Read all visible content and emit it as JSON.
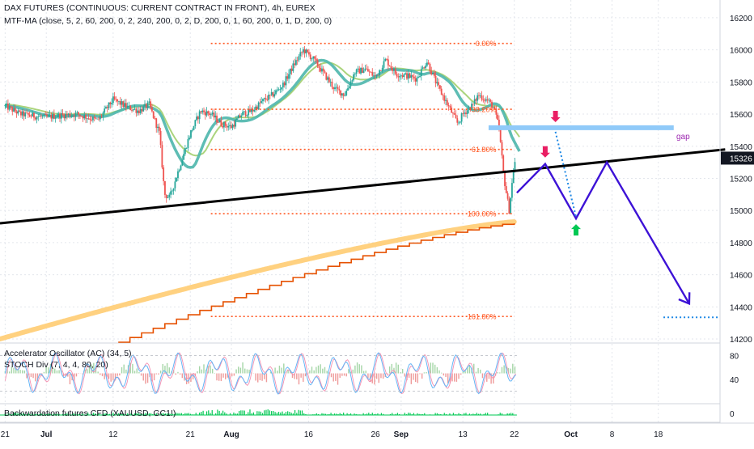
{
  "chart_data": {
    "type": "candlestick",
    "header": {
      "title": "DAX FUTURES (CONTINUOUS: CURRENT CONTRACT IN FRONT), 4h, EUREX",
      "indicator": "MTF-MA (close, 5, 2, 60, 200, 0, 2, 240, 200, 0, 2, D, 200, 0, 1, 60, 200, 0, 1, D, 200, 0)"
    },
    "price_axis": {
      "ticks": [
        16200,
        16000,
        15800,
        15600,
        15400,
        15200,
        15000,
        14800,
        14600,
        14400,
        14200
      ],
      "ylim": [
        14180,
        16270
      ],
      "current_price": "15326"
    },
    "time_axis": {
      "labels": [
        {
          "t": 0,
          "text": "21"
        },
        {
          "t": 8,
          "text": "Jul"
        },
        {
          "t": 21,
          "text": "12"
        },
        {
          "t": 36,
          "text": "21"
        },
        {
          "t": 44,
          "text": "Aug"
        },
        {
          "t": 59,
          "text": "16"
        },
        {
          "t": 72,
          "text": "26"
        },
        {
          "t": 77,
          "text": "Sep"
        },
        {
          "t": 89,
          "text": "13"
        },
        {
          "t": 99,
          "text": "22"
        },
        {
          "t": 110,
          "text": "Oct"
        },
        {
          "t": 118,
          "text": "8"
        },
        {
          "t": 127,
          "text": "18"
        }
      ]
    },
    "price_path": [
      [
        0,
        15650
      ],
      [
        3,
        15600
      ],
      [
        5,
        15590
      ],
      [
        8,
        15580
      ],
      [
        10,
        15590
      ],
      [
        14,
        15600
      ],
      [
        18,
        15560
      ],
      [
        21,
        15690
      ],
      [
        24,
        15640
      ],
      [
        26,
        15620
      ],
      [
        28,
        15660
      ],
      [
        30,
        15480
      ],
      [
        31,
        15100
      ],
      [
        32,
        15080
      ],
      [
        34,
        15280
      ],
      [
        36,
        15480
      ],
      [
        38,
        15620
      ],
      [
        40,
        15600
      ],
      [
        42,
        15540
      ],
      [
        44,
        15520
      ],
      [
        46,
        15600
      ],
      [
        48,
        15620
      ],
      [
        50,
        15680
      ],
      [
        52,
        15720
      ],
      [
        54,
        15780
      ],
      [
        56,
        15900
      ],
      [
        58,
        16000
      ],
      [
        60,
        15940
      ],
      [
        62,
        15850
      ],
      [
        64,
        15760
      ],
      [
        66,
        15720
      ],
      [
        68,
        15860
      ],
      [
        70,
        15880
      ],
      [
        72,
        15830
      ],
      [
        74,
        15940
      ],
      [
        76,
        15850
      ],
      [
        78,
        15840
      ],
      [
        80,
        15820
      ],
      [
        82,
        15930
      ],
      [
        84,
        15780
      ],
      [
        86,
        15660
      ],
      [
        88,
        15540
      ],
      [
        89,
        15600
      ],
      [
        91,
        15660
      ],
      [
        92,
        15720
      ],
      [
        94,
        15680
      ],
      [
        95,
        15640
      ],
      [
        96,
        15520
      ],
      [
        97,
        15200
      ],
      [
        98,
        15000
      ],
      [
        99,
        15300
      ]
    ],
    "fibonacci": [
      {
        "label": "0.00%",
        "price": 16040
      },
      {
        "label": "38.20%",
        "price": 15630
      },
      {
        "label": "61.80%",
        "price": 15380
      },
      {
        "label": "100.00%",
        "price": 14980
      },
      {
        "label": "161.80%",
        "price": 14340
      }
    ],
    "annotations": {
      "gap_label": "gap",
      "gap_zone": {
        "from": 94,
        "to": 130,
        "price": 15515
      },
      "trendline": [
        {
          "t": -1,
          "price": 14920
        },
        {
          "t": 140,
          "price": 15380
        }
      ],
      "forecast_path": [
        {
          "t": 99.5,
          "price": 15110
        },
        {
          "t": 105,
          "price": 15290
        },
        {
          "t": 111,
          "price": 14950
        },
        {
          "t": 117,
          "price": 15300
        },
        {
          "t": 133,
          "price": 14420
        }
      ],
      "dotted_path": [
        {
          "t": 107,
          "price": 15490
        },
        {
          "t": 111,
          "price": 14960
        }
      ],
      "target_price": 14335,
      "arrows": [
        {
          "t": 107,
          "price": 15550,
          "dir": "down",
          "color": "#e91e63"
        },
        {
          "t": 105,
          "price": 15330,
          "dir": "down",
          "color": "#e91e63"
        },
        {
          "t": 111,
          "price": 14915,
          "dir": "up",
          "color": "#00c853"
        }
      ],
      "support_curves": {
        "yellow_start": {
          "t": -1,
          "price": 14200
        },
        "yellow_end": {
          "t": 99,
          "price": 14930
        },
        "orange_start": {
          "t": 22,
          "price": 14180
        },
        "orange_end": {
          "t": 99,
          "price": 14920
        }
      }
    },
    "oscillator": {
      "labels": [
        "Accelerator Oscillator (AC) (34, 5)",
        "STOCH Div (7, 4, 4, 80, 20)"
      ],
      "ticks": [
        80,
        40
      ]
    },
    "lower_pane": {
      "label": "Backwardation futures CFD (XAUUSD, GC1!)",
      "tick": "0"
    },
    "colors": {
      "trendline": "#000000",
      "forecast": "#3d12d6",
      "gap": "#90caf9",
      "fib": "#ff5722",
      "ma_teal": "#4db6ac",
      "ma_green": "#9ccc65",
      "yellow_ma": "#ffd180",
      "orange_ma": "#e65100",
      "candle_up": "#26a69a",
      "candle_down": "#ef5350",
      "gap_label": "#9c27b0",
      "price_badge": "#131722"
    }
  }
}
